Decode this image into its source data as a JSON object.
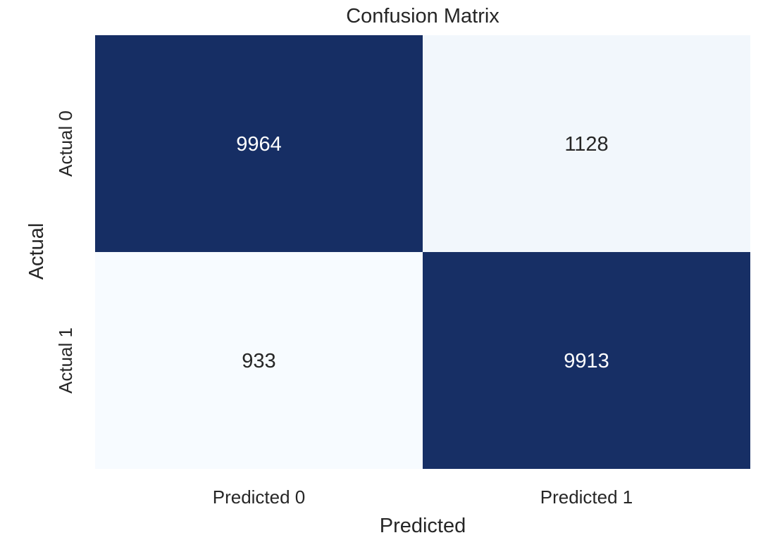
{
  "chart_data": {
    "type": "heatmap",
    "title": "Confusion Matrix",
    "xlabel": "Predicted",
    "ylabel": "Actual",
    "x_categories": [
      "Predicted 0",
      "Predicted 1"
    ],
    "y_categories": [
      "Actual 0",
      "Actual 1"
    ],
    "values": [
      [
        9964,
        1128
      ],
      [
        933,
        9913
      ]
    ],
    "colormap": "Blues",
    "colorbar": false,
    "colors": {
      "high": "#162e64",
      "low": "#f7fbff",
      "high_text": "#ffffff",
      "low_text": "#262626"
    }
  }
}
